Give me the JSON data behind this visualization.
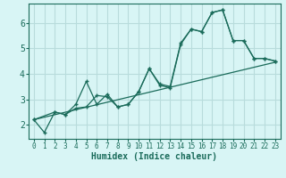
{
  "background_color": "#d8f5f5",
  "grid_color": "#b8dcdc",
  "line_color": "#1a6b5a",
  "xlabel": "Humidex (Indice chaleur)",
  "xlim": [
    -0.5,
    23.5
  ],
  "ylim": [
    1.45,
    6.75
  ],
  "yticks": [
    2,
    3,
    4,
    5,
    6
  ],
  "xticks": [
    0,
    1,
    2,
    3,
    4,
    5,
    6,
    7,
    8,
    9,
    10,
    11,
    12,
    13,
    14,
    15,
    16,
    17,
    18,
    19,
    20,
    21,
    22,
    23
  ],
  "line1_x": [
    0,
    1,
    2,
    3,
    4,
    5,
    6,
    7,
    8,
    9,
    10,
    11,
    12,
    13,
    14,
    15,
    16,
    17,
    18,
    19,
    20,
    21,
    22,
    23
  ],
  "line1_y": [
    2.2,
    1.7,
    2.5,
    2.4,
    2.8,
    3.7,
    2.8,
    3.2,
    2.7,
    2.8,
    3.3,
    4.2,
    3.6,
    3.5,
    5.2,
    5.75,
    5.65,
    6.4,
    6.5,
    5.3,
    5.3,
    4.6,
    4.6,
    4.5
  ],
  "line2_x": [
    0,
    2,
    3,
    4,
    5,
    6,
    7,
    8,
    9,
    10,
    11,
    12,
    13,
    14,
    15,
    16,
    17,
    18,
    19,
    20,
    21,
    22,
    23
  ],
  "line2_y": [
    2.2,
    2.5,
    2.4,
    2.65,
    2.7,
    3.15,
    3.1,
    2.7,
    2.8,
    3.3,
    4.2,
    3.55,
    3.45,
    5.15,
    5.75,
    5.65,
    6.4,
    6.5,
    5.3,
    5.3,
    4.6,
    4.6,
    4.5
  ],
  "line3_x": [
    0,
    23
  ],
  "line3_y": [
    2.2,
    4.45
  ]
}
